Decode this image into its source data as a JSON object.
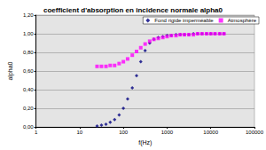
{
  "chart_data": {
    "type": "scatter",
    "title": "coefficient d'absorption en incidence normale alpha0",
    "x_label": "f(Hz)",
    "y_label": "alpha0",
    "log": "x",
    "grid": true,
    "legend": "upper right",
    "xlim": [
      1,
      100000
    ],
    "xticks": [
      1,
      10,
      100,
      1000,
      10000,
      100000
    ],
    "ylim": [
      0,
      1.2
    ],
    "yticks": [
      {
        "value": 0,
        "label": "0,00"
      },
      {
        "value": 0.2,
        "label": "0,20"
      },
      {
        "value": 0.4,
        "label": "0,40"
      },
      {
        "value": 0.6,
        "label": "0,60"
      },
      {
        "value": 0.8,
        "label": "0,80"
      },
      {
        "value": 1.0,
        "label": "1,00"
      },
      {
        "value": 1.2,
        "label": "1,20"
      }
    ],
    "x": [
      25,
      31.5,
      40,
      50,
      63,
      80,
      100,
      125,
      160,
      200,
      250,
      315,
      400,
      500,
      630,
      800,
      1000,
      1250,
      1600,
      2000,
      2500,
      3150,
      4000,
      5000,
      6300,
      8000,
      10000,
      12500,
      16000,
      20000
    ],
    "series": [
      {
        "name": "Fond rigide imperméable",
        "color": "#000080",
        "marker": "diamond",
        "values": [
          0.01,
          0.02,
          0.03,
          0.05,
          0.08,
          0.13,
          0.2,
          0.3,
          0.42,
          0.55,
          0.7,
          0.82,
          0.9,
          0.94,
          0.96,
          0.97,
          0.98,
          0.98,
          0.99,
          0.99,
          0.99,
          0.99,
          1.0,
          1.0,
          1.0,
          1.0,
          1.0,
          1.0,
          1.0,
          1.0
        ]
      },
      {
        "name": "Atmosphère",
        "color": "#ff00ff",
        "marker": "square",
        "values": [
          0.65,
          0.65,
          0.65,
          0.66,
          0.66,
          0.68,
          0.7,
          0.73,
          0.77,
          0.81,
          0.85,
          0.89,
          0.92,
          0.94,
          0.95,
          0.96,
          0.97,
          0.98,
          0.98,
          0.99,
          0.99,
          0.99,
          0.99,
          1.0,
          1.0,
          1.0,
          1.0,
          1.0,
          1.0,
          1.0
        ]
      }
    ]
  }
}
